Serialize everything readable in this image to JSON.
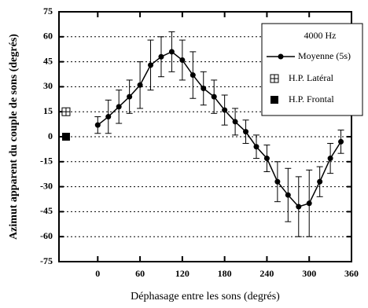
{
  "chart_data": {
    "type": "line",
    "xlabel": "Déphasage entre les sons (degrés)",
    "ylabel": "Azimut apparent du couple de sons (degrés)",
    "legend_title": "4000 Hz",
    "x": [
      0,
      15,
      30,
      45,
      60,
      75,
      90,
      105,
      120,
      135,
      150,
      165,
      180,
      195,
      210,
      225,
      240,
      255,
      270,
      285,
      300,
      315,
      330,
      345
    ],
    "series": [
      {
        "name": "Moyenne (5s)",
        "color": "#000000",
        "values": [
          7,
          12,
          18,
          24,
          31,
          43,
          48,
          51,
          46,
          37,
          29,
          24,
          16,
          9,
          3,
          -6,
          -13,
          -27,
          -35,
          -42,
          -40,
          -27,
          -13,
          -3
        ],
        "errors": [
          5,
          10,
          10,
          10,
          14,
          15,
          12,
          12,
          12,
          14,
          10,
          10,
          9,
          8,
          7,
          7,
          8,
          12,
          16,
          18,
          20,
          9,
          9,
          7
        ]
      }
    ],
    "markers": [
      {
        "name": "H.P. Latéral",
        "x": [
          -45
        ],
        "values": [
          15
        ],
        "color": "#000000"
      },
      {
        "name": "H.P. Frontal",
        "x": [
          -45
        ],
        "values": [
          0
        ],
        "color": "#000000"
      }
    ],
    "xlim": [
      -55,
      360
    ],
    "ylim": [
      -75,
      75
    ],
    "xticks": [
      0,
      60,
      120,
      180,
      240,
      300,
      360
    ],
    "yticks": [
      -75,
      -60,
      -45,
      -30,
      -15,
      0,
      15,
      30,
      45,
      60,
      75
    ],
    "grid": true
  }
}
